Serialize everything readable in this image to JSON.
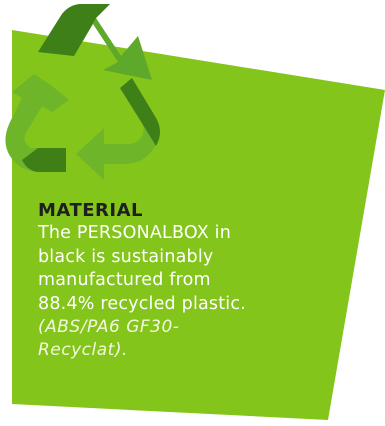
{
  "colors": {
    "background": "#ffffff",
    "panel": "#84c51c",
    "heading": "#1f1f1f",
    "body_text": "#ffffff",
    "icon_light": "#6fb52a",
    "icon_dark": "#3f7f18"
  },
  "icon": {
    "name": "recycle-icon"
  },
  "material": {
    "heading": "MATERIAL",
    "body_lines": [
      "The PERSONALBOX in",
      "black is sustainably",
      "manufactured from",
      "88.4% recycled plastic."
    ],
    "note_lines": [
      "(ABS/PA6 GF30-",
      "Recyclat)."
    ]
  }
}
